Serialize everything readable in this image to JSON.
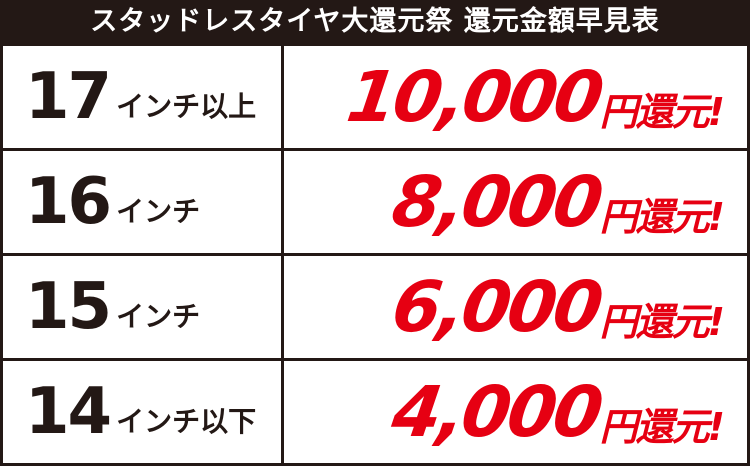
{
  "header": {
    "title": "スタッドレスタイヤ大還元祭 還元金額早見表"
  },
  "colors": {
    "accent": "#e60012",
    "dark": "#231815"
  },
  "rows": [
    {
      "size": "17",
      "suffix": "インチ以上",
      "amount": "10,000",
      "unit": "円還元!"
    },
    {
      "size": "16",
      "suffix": "インチ",
      "amount": "8,000",
      "unit": "円還元!"
    },
    {
      "size": "15",
      "suffix": "インチ",
      "amount": "6,000",
      "unit": "円還元!"
    },
    {
      "size": "14",
      "suffix": "インチ以下",
      "amount": "4,000",
      "unit": "円還元!"
    }
  ]
}
